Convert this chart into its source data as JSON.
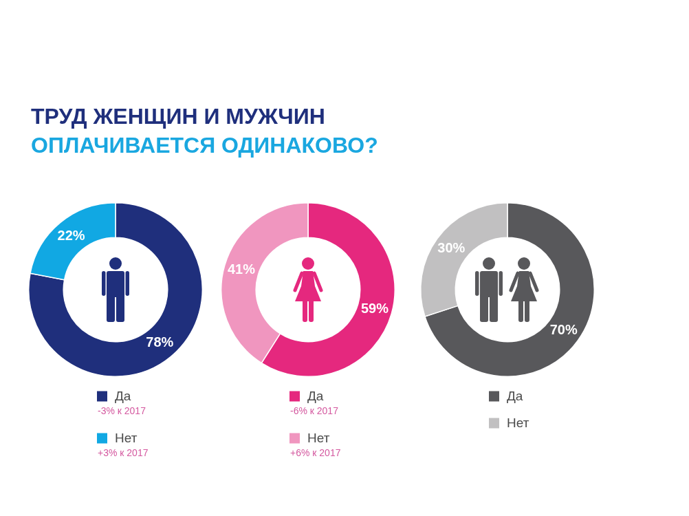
{
  "chart_data": [
    {
      "type": "donut",
      "title": "ТРУД ЖЕНЩИН И МУЖЧИН",
      "subtitle": "ОПЛАЧИВАЕТСЯ ОДИНАКОВО?",
      "categories": [
        "Да",
        "Нет"
      ],
      "values": [
        78,
        22
      ],
      "colors": [
        "#1f2f7c",
        "#11a8e3"
      ],
      "value_labels": [
        "78%",
        "22%"
      ],
      "legend": "bottom",
      "annotations": [
        "-3% к 2017",
        "+3% к 2017"
      ]
    },
    {
      "type": "donut",
      "categories": [
        "Да",
        "Нет"
      ],
      "values": [
        59,
        41
      ],
      "colors": [
        "#e5287e",
        "#f096bf"
      ],
      "value_labels": [
        "59%",
        "41%"
      ],
      "legend": "bottom",
      "annotations": [
        "-6% к 2017",
        "+6% к 2017"
      ]
    },
    {
      "type": "donut",
      "categories": [
        "Да",
        "Нет"
      ],
      "values": [
        70,
        30
      ],
      "colors": [
        "#58585b",
        "#c1c0c1"
      ],
      "value_labels": [
        "70%",
        "30%"
      ],
      "legend": "bottom"
    }
  ]
}
